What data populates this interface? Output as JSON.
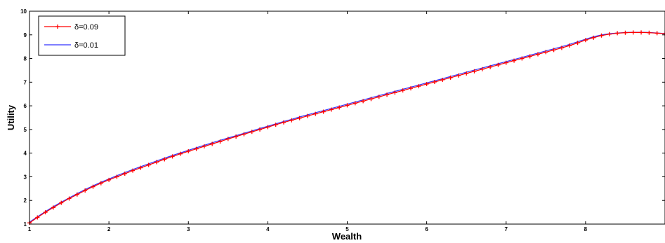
{
  "chart_data": {
    "type": "line",
    "xlabel": "Wealth",
    "ylabel": "Utility",
    "xlim": [
      1,
      9
    ],
    "ylim": [
      1,
      10
    ],
    "xticks": [
      "1",
      "2",
      "3",
      "4",
      "5",
      "6",
      "7",
      "8"
    ],
    "yticks": [
      "1",
      "2",
      "3",
      "4",
      "5",
      "6",
      "7",
      "8",
      "9",
      "10"
    ],
    "grid": false,
    "legend_position": "top-left",
    "series": [
      {
        "name": "δ=0.09",
        "color": "#ff0000",
        "marker": "plus",
        "x": [
          1.0,
          1.1,
          1.2,
          1.3,
          1.4,
          1.5,
          1.6,
          1.7,
          1.8,
          1.9,
          2.0,
          2.1,
          2.2,
          2.3,
          2.4,
          2.5,
          2.6,
          2.7,
          2.8,
          2.9,
          3.0,
          3.1,
          3.2,
          3.3,
          3.4,
          3.5,
          3.6,
          3.7,
          3.8,
          3.9,
          4.0,
          4.1,
          4.2,
          4.3,
          4.4,
          4.5,
          4.6,
          4.7,
          4.8,
          4.9,
          5.0,
          5.1,
          5.2,
          5.3,
          5.4,
          5.5,
          5.6,
          5.7,
          5.8,
          5.9,
          6.0,
          6.1,
          6.2,
          6.3,
          6.4,
          6.5,
          6.6,
          6.7,
          6.8,
          6.9,
          7.0,
          7.1,
          7.2,
          7.3,
          7.4,
          7.5,
          7.6,
          7.7,
          7.8,
          7.9,
          8.0,
          8.1,
          8.2,
          8.3,
          8.4,
          8.5,
          8.6,
          8.7,
          8.8,
          8.9,
          9.0
        ],
        "y": [
          1.05,
          1.28,
          1.5,
          1.7,
          1.9,
          2.08,
          2.25,
          2.42,
          2.58,
          2.73,
          2.87,
          3.0,
          3.13,
          3.26,
          3.38,
          3.5,
          3.62,
          3.74,
          3.86,
          3.97,
          4.08,
          4.18,
          4.29,
          4.39,
          4.49,
          4.6,
          4.7,
          4.8,
          4.9,
          5.0,
          5.1,
          5.2,
          5.3,
          5.39,
          5.48,
          5.57,
          5.66,
          5.75,
          5.84,
          5.93,
          6.02,
          6.11,
          6.2,
          6.29,
          6.38,
          6.47,
          6.56,
          6.65,
          6.74,
          6.83,
          6.92,
          7.01,
          7.1,
          7.19,
          7.28,
          7.37,
          7.46,
          7.55,
          7.64,
          7.73,
          7.82,
          7.91,
          8.0,
          8.09,
          8.18,
          8.27,
          8.36,
          8.45,
          8.55,
          8.66,
          8.78,
          8.88,
          8.97,
          9.03,
          9.07,
          9.09,
          9.1,
          9.1,
          9.09,
          9.07,
          9.05
        ]
      },
      {
        "name": "δ=0.01",
        "color": "#3333ff",
        "marker": "none",
        "x": [
          1.0,
          1.1,
          1.2,
          1.3,
          1.4,
          1.5,
          1.6,
          1.7,
          1.8,
          1.9,
          2.0,
          2.1,
          2.2,
          2.3,
          2.4,
          2.5,
          2.6,
          2.7,
          2.8,
          2.9,
          3.0,
          3.1,
          3.2,
          3.3,
          3.4,
          3.5,
          3.6,
          3.7,
          3.8,
          3.9,
          4.0,
          4.1,
          4.2,
          4.3,
          4.4,
          4.5,
          4.6,
          4.7,
          4.8,
          4.9,
          5.0,
          5.1,
          5.2,
          5.3,
          5.4,
          5.5,
          5.6,
          5.7,
          5.8,
          5.9,
          6.0,
          6.1,
          6.2,
          6.3,
          6.4,
          6.5,
          6.6,
          6.7,
          6.8,
          6.9,
          7.0,
          7.1,
          7.2,
          7.3,
          7.4,
          7.5,
          7.6,
          7.7,
          7.8,
          7.9,
          8.0,
          8.1,
          8.2,
          8.3,
          8.4,
          8.5,
          8.6,
          8.7,
          8.8,
          8.9,
          9.0
        ],
        "y": [
          1.08,
          1.31,
          1.53,
          1.74,
          1.93,
          2.11,
          2.29,
          2.46,
          2.62,
          2.77,
          2.91,
          3.05,
          3.18,
          3.31,
          3.43,
          3.55,
          3.67,
          3.79,
          3.9,
          4.01,
          4.12,
          4.23,
          4.33,
          4.44,
          4.54,
          4.64,
          4.74,
          4.84,
          4.94,
          5.04,
          5.14,
          5.24,
          5.34,
          5.43,
          5.53,
          5.62,
          5.71,
          5.8,
          5.89,
          5.98,
          6.07,
          6.16,
          6.25,
          6.34,
          6.43,
          6.52,
          6.61,
          6.7,
          6.79,
          6.88,
          6.97,
          7.06,
          7.15,
          7.24,
          7.33,
          7.42,
          7.51,
          7.6,
          7.69,
          7.78,
          7.87,
          7.96,
          8.05,
          8.14,
          8.23,
          8.32,
          8.41,
          8.5,
          8.6,
          8.71,
          8.82,
          8.92,
          9.0,
          9.05,
          9.08,
          9.1,
          9.11,
          9.11,
          9.1,
          9.08,
          9.06
        ]
      }
    ]
  }
}
